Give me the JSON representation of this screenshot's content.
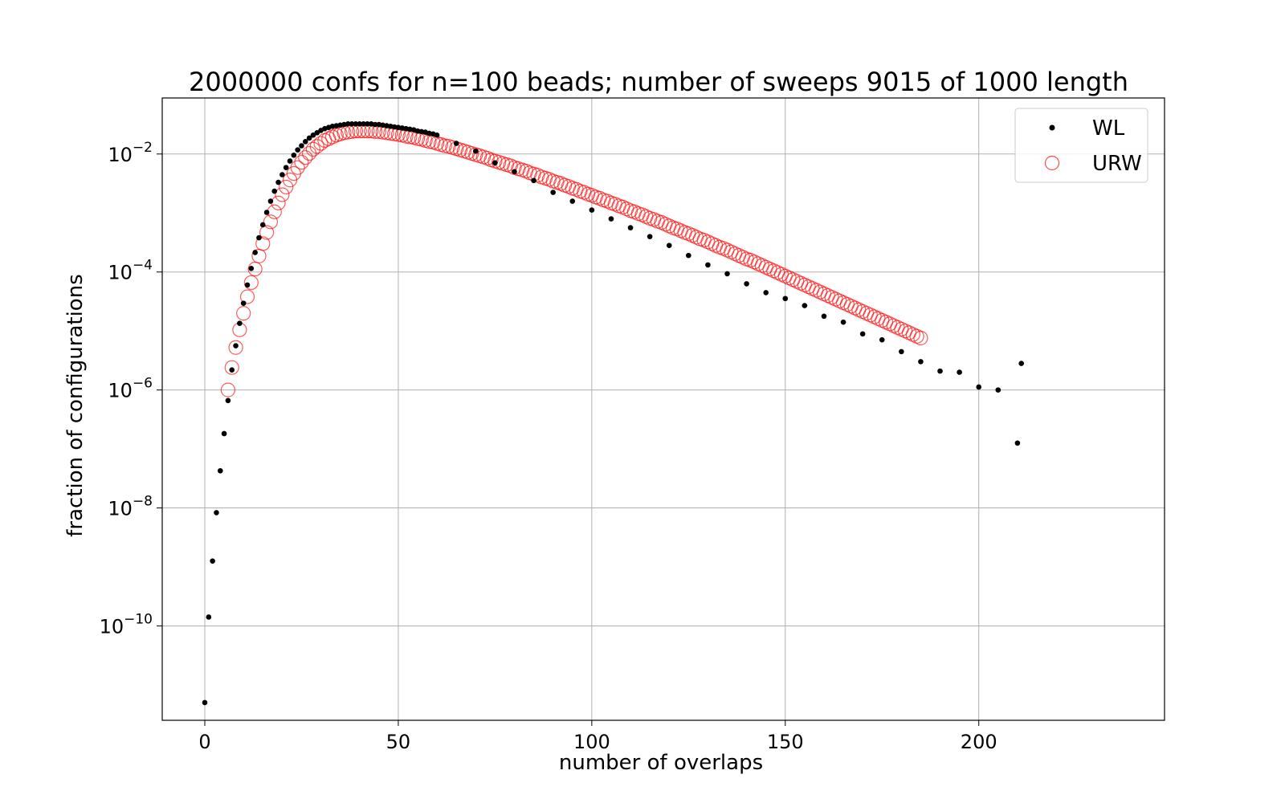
{
  "chart_data": {
    "type": "scatter",
    "title": "2000000 confs for n=100 beads; number of sweeps 9015 of 1000 length",
    "xlabel": "number of overlaps",
    "ylabel": "fraction of configurations",
    "xlim": [
      -11,
      248
    ],
    "ylim_log10": [
      -11.6,
      -1.05
    ],
    "log_scale_y": true,
    "grid": true,
    "legend_position": "top-right",
    "x_ticks": [
      0,
      50,
      100,
      150,
      200
    ],
    "x_tick_labels": [
      "0",
      "50",
      "100",
      "150",
      "200"
    ],
    "y_ticks_log10": [
      -10,
      -8,
      -6,
      -4,
      -2
    ],
    "y_tick_labels": [
      "10",
      "10",
      "10",
      "10",
      "10"
    ],
    "y_tick_exponents": [
      "−10",
      "−8",
      "−6",
      "−4",
      "−2"
    ],
    "series": [
      {
        "name": "WL",
        "marker": "dot",
        "color": "#000000",
        "points": [
          [
            0,
            -11.3
          ],
          [
            1,
            -9.85
          ],
          [
            2,
            -8.9
          ],
          [
            3,
            -8.08
          ],
          [
            4,
            -7.37
          ],
          [
            5,
            -6.74
          ],
          [
            6,
            -6.18
          ],
          [
            7,
            -5.66
          ],
          [
            8,
            -5.25
          ],
          [
            9,
            -4.87
          ],
          [
            10,
            -4.53
          ],
          [
            11,
            -4.22
          ],
          [
            12,
            -3.94
          ],
          [
            13,
            -3.67
          ],
          [
            14,
            -3.42
          ],
          [
            15,
            -3.2
          ],
          [
            16,
            -2.99
          ],
          [
            17,
            -2.8
          ],
          [
            18,
            -2.63
          ],
          [
            19,
            -2.48
          ],
          [
            20,
            -2.35
          ],
          [
            21,
            -2.23
          ],
          [
            22,
            -2.12
          ],
          [
            23,
            -2.02
          ],
          [
            24,
            -1.93
          ],
          [
            25,
            -1.86
          ],
          [
            26,
            -1.79
          ],
          [
            27,
            -1.73
          ],
          [
            28,
            -1.68
          ],
          [
            29,
            -1.64
          ],
          [
            30,
            -1.6
          ],
          [
            31,
            -1.57
          ],
          [
            32,
            -1.55
          ],
          [
            33,
            -1.53
          ],
          [
            34,
            -1.52
          ],
          [
            35,
            -1.51
          ],
          [
            36,
            -1.5
          ],
          [
            37,
            -1.49
          ],
          [
            38,
            -1.49
          ],
          [
            39,
            -1.49
          ],
          [
            40,
            -1.49
          ],
          [
            41,
            -1.49
          ],
          [
            42,
            -1.49
          ],
          [
            43,
            -1.49
          ],
          [
            44,
            -1.5
          ],
          [
            45,
            -1.5
          ],
          [
            46,
            -1.51
          ],
          [
            47,
            -1.52
          ],
          [
            48,
            -1.53
          ],
          [
            49,
            -1.54
          ],
          [
            50,
            -1.55
          ],
          [
            51,
            -1.56
          ],
          [
            52,
            -1.57
          ],
          [
            53,
            -1.58
          ],
          [
            54,
            -1.59
          ],
          [
            55,
            -1.61
          ],
          [
            56,
            -1.62
          ],
          [
            57,
            -1.63
          ],
          [
            58,
            -1.65
          ],
          [
            59,
            -1.66
          ],
          [
            60,
            -1.68
          ],
          [
            65,
            -1.82
          ],
          [
            70,
            -1.95
          ],
          [
            75,
            -2.15
          ],
          [
            80,
            -2.3
          ],
          [
            85,
            -2.45
          ],
          [
            90,
            -2.65
          ],
          [
            95,
            -2.8
          ],
          [
            100,
            -2.95
          ],
          [
            105,
            -3.1
          ],
          [
            110,
            -3.25
          ],
          [
            115,
            -3.4
          ],
          [
            120,
            -3.55
          ],
          [
            125,
            -3.72
          ],
          [
            130,
            -3.88
          ],
          [
            135,
            -4.03
          ],
          [
            140,
            -4.2
          ],
          [
            145,
            -4.35
          ],
          [
            150,
            -4.45
          ],
          [
            155,
            -4.57
          ],
          [
            160,
            -4.75
          ],
          [
            165,
            -4.85
          ],
          [
            170,
            -5.05
          ],
          [
            175,
            -5.15
          ],
          [
            180,
            -5.35
          ],
          [
            185,
            -5.52
          ],
          [
            190,
            -5.68
          ],
          [
            195,
            -5.7
          ],
          [
            200,
            -5.95
          ],
          [
            205,
            -6.0
          ],
          [
            210,
            -6.9
          ],
          [
            211,
            -5.55
          ]
        ]
      },
      {
        "name": "URW",
        "marker": "open-circle",
        "color": "#ff0000",
        "points": [
          [
            6,
            -6.0
          ],
          [
            7,
            -5.62
          ],
          [
            8,
            -5.28
          ],
          [
            9,
            -4.98
          ],
          [
            10,
            -4.7
          ],
          [
            11,
            -4.42
          ],
          [
            12,
            -4.18
          ],
          [
            13,
            -3.95
          ],
          [
            14,
            -3.73
          ],
          [
            15,
            -3.52
          ],
          [
            16,
            -3.33
          ],
          [
            17,
            -3.15
          ],
          [
            18,
            -2.98
          ],
          [
            19,
            -2.83
          ],
          [
            20,
            -2.69
          ],
          [
            21,
            -2.56
          ],
          [
            22,
            -2.44
          ],
          [
            23,
            -2.33
          ],
          [
            24,
            -2.23
          ],
          [
            25,
            -2.14
          ],
          [
            26,
            -2.06
          ],
          [
            27,
            -1.99
          ],
          [
            28,
            -1.92
          ],
          [
            29,
            -1.87
          ],
          [
            30,
            -1.82
          ],
          [
            31,
            -1.77
          ],
          [
            32,
            -1.74
          ],
          [
            33,
            -1.71
          ],
          [
            34,
            -1.68
          ],
          [
            35,
            -1.66
          ],
          [
            36,
            -1.64
          ],
          [
            37,
            -1.63
          ],
          [
            38,
            -1.62
          ],
          [
            39,
            -1.61
          ],
          [
            40,
            -1.61
          ],
          [
            41,
            -1.61
          ],
          [
            42,
            -1.61
          ],
          [
            43,
            -1.61
          ],
          [
            44,
            -1.62
          ],
          [
            45,
            -1.62
          ],
          [
            46,
            -1.63
          ],
          [
            47,
            -1.64
          ],
          [
            48,
            -1.65
          ],
          [
            49,
            -1.66
          ],
          [
            50,
            -1.67
          ],
          [
            51,
            -1.68
          ],
          [
            52,
            -1.7
          ],
          [
            53,
            -1.71
          ],
          [
            54,
            -1.72
          ],
          [
            55,
            -1.74
          ],
          [
            56,
            -1.75
          ],
          [
            57,
            -1.77
          ],
          [
            58,
            -1.79
          ],
          [
            59,
            -1.8
          ],
          [
            60,
            -1.82
          ],
          [
            61,
            -1.84
          ],
          [
            62,
            -1.86
          ],
          [
            63,
            -1.87
          ],
          [
            64,
            -1.89
          ],
          [
            65,
            -1.91
          ],
          [
            66,
            -1.93
          ],
          [
            67,
            -1.95
          ],
          [
            68,
            -1.97
          ],
          [
            69,
            -1.99
          ],
          [
            70,
            -2.01
          ],
          [
            71,
            -2.03
          ],
          [
            72,
            -2.05
          ],
          [
            73,
            -2.07
          ],
          [
            74,
            -2.1
          ],
          [
            75,
            -2.12
          ],
          [
            76,
            -2.14
          ],
          [
            77,
            -2.16
          ],
          [
            78,
            -2.18
          ],
          [
            79,
            -2.2
          ],
          [
            80,
            -2.23
          ],
          [
            81,
            -2.25
          ],
          [
            82,
            -2.27
          ],
          [
            83,
            -2.29
          ],
          [
            84,
            -2.32
          ],
          [
            85,
            -2.34
          ],
          [
            86,
            -2.36
          ],
          [
            87,
            -2.39
          ],
          [
            88,
            -2.41
          ],
          [
            89,
            -2.43
          ],
          [
            90,
            -2.46
          ],
          [
            91,
            -2.48
          ],
          [
            92,
            -2.5
          ],
          [
            93,
            -2.53
          ],
          [
            94,
            -2.55
          ],
          [
            95,
            -2.58
          ],
          [
            96,
            -2.6
          ],
          [
            97,
            -2.63
          ],
          [
            98,
            -2.65
          ],
          [
            99,
            -2.68
          ],
          [
            100,
            -2.7
          ],
          [
            101,
            -2.73
          ],
          [
            102,
            -2.75
          ],
          [
            103,
            -2.78
          ],
          [
            104,
            -2.8
          ],
          [
            105,
            -2.83
          ],
          [
            106,
            -2.85
          ],
          [
            107,
            -2.88
          ],
          [
            108,
            -2.9
          ],
          [
            109,
            -2.93
          ],
          [
            110,
            -2.96
          ],
          [
            111,
            -2.98
          ],
          [
            112,
            -3.01
          ],
          [
            113,
            -3.03
          ],
          [
            114,
            -3.06
          ],
          [
            115,
            -3.09
          ],
          [
            116,
            -3.11
          ],
          [
            117,
            -3.14
          ],
          [
            118,
            -3.16
          ],
          [
            119,
            -3.19
          ],
          [
            120,
            -3.22
          ],
          [
            121,
            -3.25
          ],
          [
            122,
            -3.27
          ],
          [
            123,
            -3.3
          ],
          [
            124,
            -3.33
          ],
          [
            125,
            -3.35
          ],
          [
            126,
            -3.38
          ],
          [
            127,
            -3.41
          ],
          [
            128,
            -3.44
          ],
          [
            129,
            -3.46
          ],
          [
            130,
            -3.49
          ],
          [
            131,
            -3.52
          ],
          [
            132,
            -3.55
          ],
          [
            133,
            -3.58
          ],
          [
            134,
            -3.6
          ],
          [
            135,
            -3.63
          ],
          [
            136,
            -3.66
          ],
          [
            137,
            -3.69
          ],
          [
            138,
            -3.72
          ],
          [
            139,
            -3.75
          ],
          [
            140,
            -3.78
          ],
          [
            141,
            -3.8
          ],
          [
            142,
            -3.83
          ],
          [
            143,
            -3.86
          ],
          [
            144,
            -3.89
          ],
          [
            145,
            -3.92
          ],
          [
            146,
            -3.95
          ],
          [
            147,
            -3.98
          ],
          [
            148,
            -4.01
          ],
          [
            149,
            -4.04
          ],
          [
            150,
            -4.07
          ],
          [
            151,
            -4.1
          ],
          [
            152,
            -4.13
          ],
          [
            153,
            -4.16
          ],
          [
            154,
            -4.19
          ],
          [
            155,
            -4.22
          ],
          [
            156,
            -4.25
          ],
          [
            157,
            -4.28
          ],
          [
            158,
            -4.31
          ],
          [
            159,
            -4.34
          ],
          [
            160,
            -4.37
          ],
          [
            161,
            -4.4
          ],
          [
            162,
            -4.43
          ],
          [
            163,
            -4.46
          ],
          [
            164,
            -4.49
          ],
          [
            165,
            -4.52
          ],
          [
            166,
            -4.55
          ],
          [
            167,
            -4.58
          ],
          [
            168,
            -4.61
          ],
          [
            169,
            -4.64
          ],
          [
            170,
            -4.67
          ],
          [
            171,
            -4.7
          ],
          [
            172,
            -4.73
          ],
          [
            173,
            -4.76
          ],
          [
            174,
            -4.79
          ],
          [
            175,
            -4.82
          ],
          [
            176,
            -4.85
          ],
          [
            177,
            -4.88
          ],
          [
            178,
            -4.91
          ],
          [
            179,
            -4.94
          ],
          [
            180,
            -4.97
          ],
          [
            181,
            -5.0
          ],
          [
            182,
            -5.03
          ],
          [
            183,
            -5.06
          ],
          [
            184,
            -5.09
          ],
          [
            185,
            -5.12
          ]
        ]
      }
    ]
  }
}
